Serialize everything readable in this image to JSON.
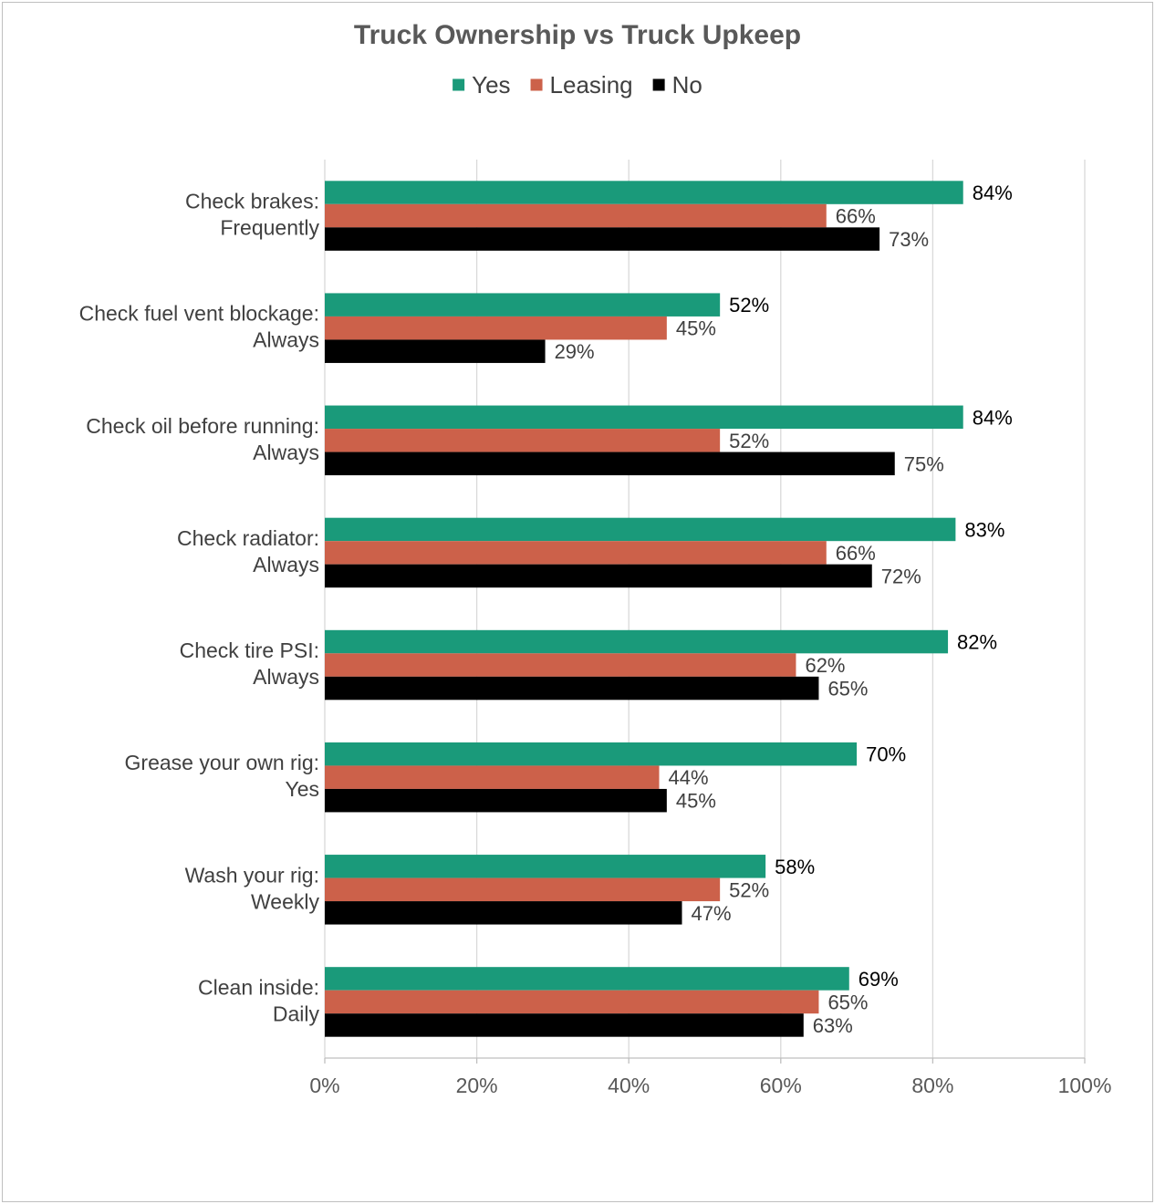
{
  "chart_data": {
    "type": "bar",
    "orientation": "horizontal",
    "title": "Truck Ownership vs Truck Upkeep",
    "xlabel": "",
    "ylabel": "",
    "xlim": [
      0,
      100
    ],
    "x_ticks": [
      "0%",
      "20%",
      "40%",
      "60%",
      "80%",
      "100%"
    ],
    "x_tick_values": [
      0,
      20,
      40,
      60,
      80,
      100
    ],
    "grid": true,
    "legend_position": "top",
    "categories": [
      [
        "Check brakes:",
        "Frequently"
      ],
      [
        "Check fuel vent blockage:",
        "Always"
      ],
      [
        "Check oil before running:",
        "Always"
      ],
      [
        "Check radiator:",
        "Always"
      ],
      [
        "Check tire PSI:",
        "Always"
      ],
      [
        "Grease your own rig:",
        "Yes"
      ],
      [
        "Wash your rig:",
        "Weekly"
      ],
      [
        "Clean inside:",
        "Daily"
      ]
    ],
    "series": [
      {
        "name": "Yes",
        "color": "#1a9a7a",
        "label_color": "#000000",
        "values": [
          84,
          52,
          84,
          83,
          82,
          70,
          58,
          69
        ],
        "labels": [
          "84%",
          "52%",
          "84%",
          "83%",
          "82%",
          "70%",
          "58%",
          "69%"
        ]
      },
      {
        "name": "Leasing",
        "color": "#cc614a",
        "label_color": "#404040",
        "values": [
          66,
          45,
          52,
          66,
          62,
          44,
          52,
          65
        ],
        "labels": [
          "66%",
          "45%",
          "52%",
          "66%",
          "62%",
          "44%",
          "52%",
          "65%"
        ]
      },
      {
        "name": "No",
        "color": "#000000",
        "label_color": "#404040",
        "values": [
          73,
          29,
          75,
          72,
          65,
          45,
          47,
          63
        ],
        "labels": [
          "73%",
          "29%",
          "75%",
          "72%",
          "65%",
          "45%",
          "47%",
          "63%"
        ]
      }
    ]
  }
}
